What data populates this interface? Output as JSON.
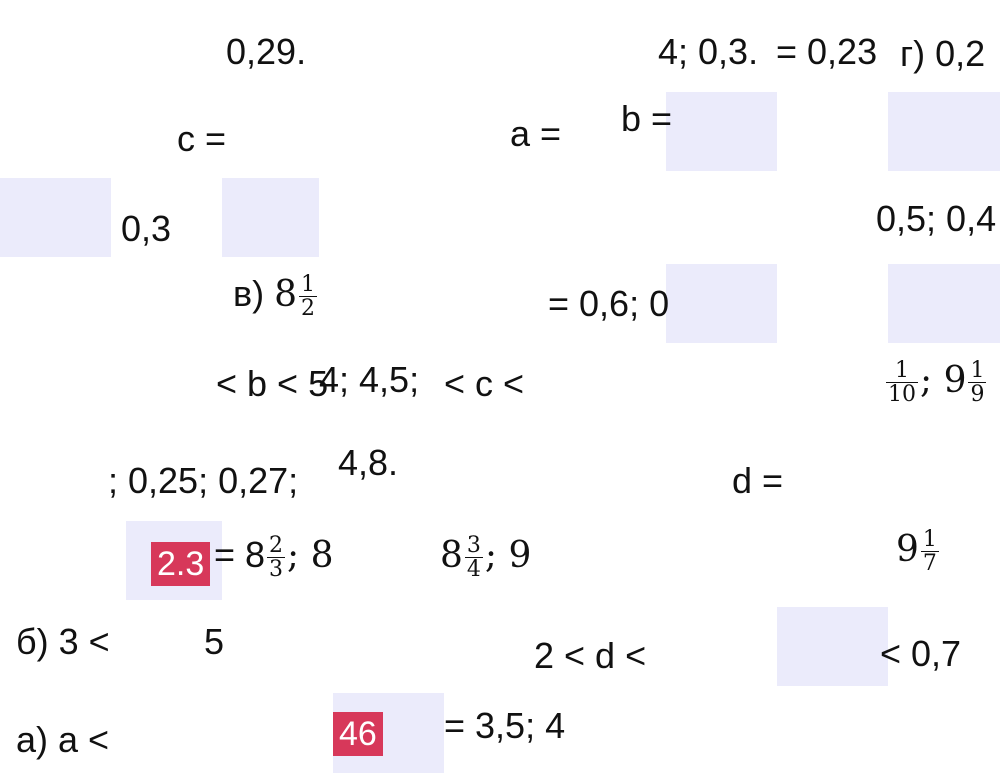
{
  "fragments": {
    "f_029": "0,29.",
    "f_4_03": "4; 0,3.",
    "f_eq_023": "= 0,23",
    "f_g_02": "г) 0,2",
    "f_c_eq": "c =",
    "f_a_eq": "a =",
    "f_b_eq": "b =",
    "f_03": "0,3",
    "f_05_04": "0,5; 0,4",
    "f_v": "в)",
    "f_v_8": "8",
    "f_v_num": "1",
    "f_v_den": "2",
    "f_eq_06": "= 0,6; 0",
    "f_lt_b_lt_5": "< b < 5",
    "f_4_45": "4; 4,5;",
    "f_lt_c_lt": "< c <",
    "f_ninth_a_num": "1",
    "f_ninth_a_den": "10",
    "f_semicolon_9": "; 9",
    "f_ninth_b_num": "1",
    "f_ninth_b_den": "9",
    "f_025_027": "; 0,25; 0,27;",
    "f_48": "4,8.",
    "f_d_eq": "d =",
    "f_eq_8": "= 8",
    "f_frac_23_num": "2",
    "f_frac_23_den": "3",
    "f_semi_8": "; 8",
    "f_8_34": "8",
    "f_frac_34_num": "3",
    "f_frac_34_den": "4",
    "f_semi_9": "; 9",
    "f_9_17": "9",
    "f_frac_17_num": "1",
    "f_frac_17_den": "7",
    "f_b_3": "б) 3 <",
    "f_5": "5",
    "f_2_lt_d_lt": "2 < d <",
    "f_lt_07": "< 0,7",
    "f_a_a": "а) a <",
    "f_eq_35": "= 3,5; 4"
  },
  "badges": {
    "badge_23": "2.3",
    "badge_46": "46"
  },
  "colors": {
    "badge": "#d7385a",
    "pad": "#ebebfb",
    "text": "#111111"
  }
}
